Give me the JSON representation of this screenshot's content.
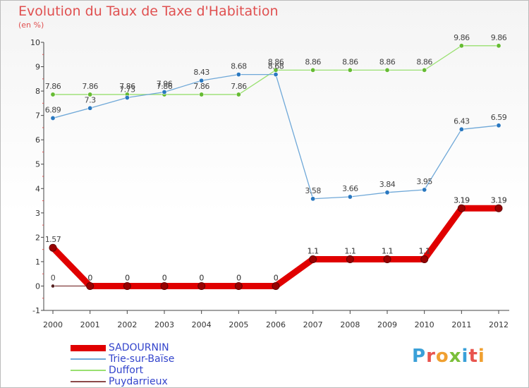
{
  "header": {
    "title": "Evolution du Taux de Taxe d'Habitation",
    "subtitle": "(en %)"
  },
  "logo": {
    "text": "Proxiti",
    "letter_colors": [
      "#3aa0d8",
      "#e8544e",
      "#f0a030",
      "#7bbf3a",
      "#3aa0d8",
      "#e8544e",
      "#f0a030"
    ]
  },
  "chart_data": {
    "type": "line",
    "title": "Evolution du Taux de Taxe d'Habitation",
    "ylabel": "(en %)",
    "x": [
      "2000",
      "2001",
      "2002",
      "2003",
      "2004",
      "2005",
      "2006",
      "2007",
      "2008",
      "2009",
      "2010",
      "2011",
      "2012"
    ],
    "ylim": [
      -1,
      10
    ],
    "yticks": [
      -1,
      0,
      1,
      2,
      3,
      4,
      5,
      6,
      7,
      8,
      9,
      10
    ],
    "grid": false,
    "legend_position": "bottom-left",
    "series": [
      {
        "name": "SADOURNIN",
        "color": "#e00000",
        "marker_color": "#990000",
        "values": [
          1.57,
          0,
          0,
          0,
          0,
          0,
          0,
          1.1,
          1.1,
          1.1,
          1.1,
          3.19,
          3.19
        ],
        "labels": [
          "1.57",
          "0",
          "0",
          "0",
          "0",
          "0",
          "0",
          "1.1",
          "1.1",
          "1.1",
          "1.1",
          "3.19",
          "3.19"
        ]
      },
      {
        "name": "Trie-sur-Baïse",
        "color": "#6fa8d8",
        "marker_color": "#2a78c0",
        "values": [
          6.89,
          7.3,
          7.73,
          7.96,
          8.43,
          8.68,
          8.68,
          3.58,
          3.66,
          3.84,
          3.95,
          6.43,
          6.59
        ],
        "labels": [
          "6.89",
          "7.3",
          "7.73",
          "7.96",
          "8.43",
          "8.68",
          "8.68",
          "3.58",
          "3.66",
          "3.84",
          "3.95",
          "6.43",
          "6.59"
        ]
      },
      {
        "name": "Duffort",
        "color": "#99e070",
        "marker_color": "#66bb33",
        "values": [
          7.86,
          7.86,
          7.86,
          7.86,
          7.86,
          7.86,
          8.86,
          8.86,
          8.86,
          8.86,
          8.86,
          9.86,
          9.86
        ],
        "labels": [
          "7.86",
          "7.86",
          "7.86",
          "7.86",
          "7.86",
          "7.86",
          "8.86",
          "8.86",
          "8.86",
          "8.86",
          "8.86",
          "9.86",
          "9.86"
        ]
      },
      {
        "name": "Puydarrieux",
        "color": "#8b4a4a",
        "marker_color": "#552222",
        "values": [
          0,
          0,
          0,
          0,
          0,
          0,
          0,
          1.1,
          1.1,
          1.1,
          1.1,
          3.19,
          3.19
        ],
        "labels": [
          "0",
          "0",
          "0",
          "0",
          "0",
          "0",
          "0",
          "1.1",
          "1.1",
          "1.1",
          "1.1",
          "3.19",
          "3.19"
        ]
      }
    ]
  }
}
